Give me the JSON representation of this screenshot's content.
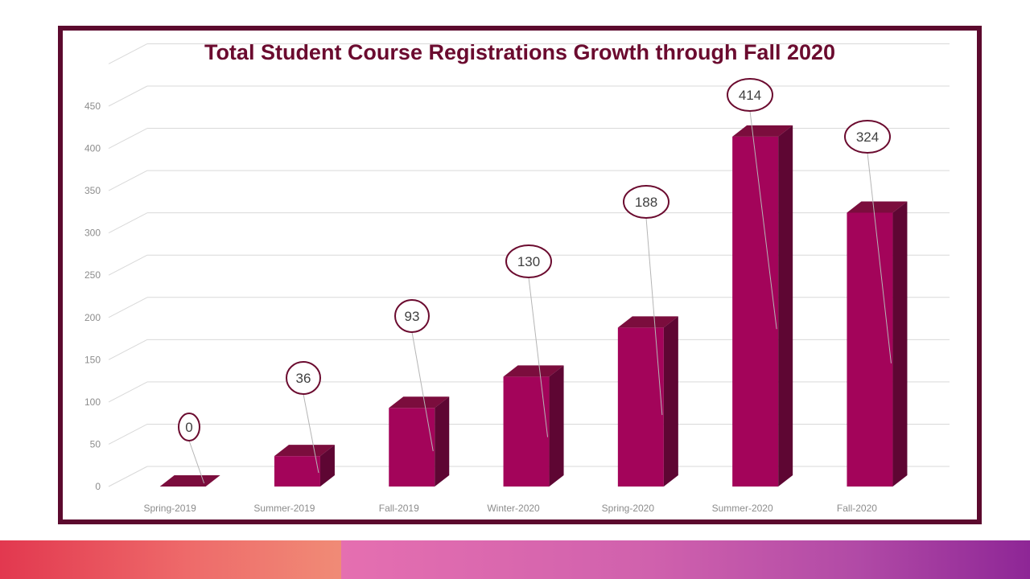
{
  "colors": {
    "frame": "#5c0a2e",
    "title": "#6b0b2f",
    "bar_front": "#a3045a",
    "bar_top": "#7b0d3d",
    "bar_side": "#5e0633",
    "label_border": "#6b0b2f",
    "grid": "#d9d9d9",
    "tick_text": "#8c8c8c"
  },
  "chart_data": {
    "type": "bar",
    "title": "Total Student Course Registrations Growth through Fall 2020",
    "categories": [
      "Spring-2019",
      "Summer-2019",
      "Fall-2019",
      "Winter-2020",
      "Spring-2020",
      "Summer-2020",
      "Fall-2020"
    ],
    "values": [
      0,
      36,
      93,
      130,
      188,
      414,
      324
    ],
    "data_labels": [
      "0",
      "36",
      "93",
      "130",
      "188",
      "414",
      "324"
    ],
    "ylim": [
      0,
      450
    ],
    "y_ticks": [
      "0",
      "50",
      "100",
      "150",
      "200",
      "250",
      "300",
      "350",
      "400",
      "450"
    ],
    "xlabel": "",
    "ylabel": "",
    "grid": true,
    "legend": false,
    "style": "3d-column"
  }
}
